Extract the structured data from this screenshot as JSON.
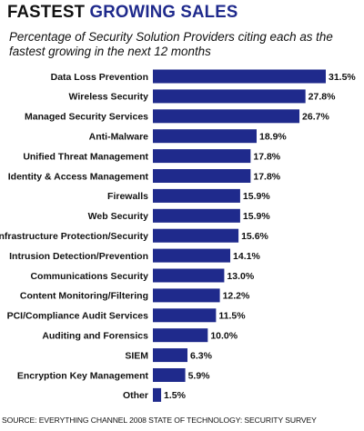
{
  "header": {
    "title_part1": "FASTEST",
    "title_part2": "GROWING SALES",
    "subtitle": "Percentage of Security Solution Providers citing each as the fastest growing in the next 12 months"
  },
  "footer": {
    "source": "SOURCE: EVERYTHING CHANNEL 2008 STATE OF TECHNOLOGY: SECURITY SURVEY"
  },
  "colors": {
    "bar": "#1f2a8c",
    "title_accent": "#1f2a8c"
  },
  "chart_data": {
    "type": "bar",
    "orientation": "horizontal",
    "title": "FASTEST GROWING SALES",
    "subtitle": "Percentage of Security Solution Providers citing each as the fastest growing in the next 12 months",
    "categories": [
      "Data Loss Prevention",
      "Wireless Security",
      "Managed Security Services",
      "Anti-Malware",
      "Unified Threat Management",
      "Identity & Access Management",
      "Firewalls",
      "Web Security",
      "Infrastructure Protection/Security",
      "Intrusion Detection/Prevention",
      "Communications Security",
      "Content Monitoring/Filtering",
      "PCI/Compliance Audit Services",
      "Auditing and Forensics",
      "SIEM",
      "Encryption Key Management",
      "Other"
    ],
    "values": [
      31.5,
      27.8,
      26.7,
      18.9,
      17.8,
      17.8,
      15.9,
      15.9,
      15.6,
      14.1,
      13.0,
      12.2,
      11.5,
      10.0,
      6.3,
      5.9,
      1.5
    ],
    "value_labels": [
      "31.5%",
      "27.8%",
      "26.7%",
      "18.9%",
      "17.8%",
      "17.8%",
      "15.9%",
      "15.9%",
      "15.6%",
      "14.1%",
      "13.0%",
      "12.2%",
      "11.5%",
      "10.0%",
      "6.3%",
      "5.9%",
      "1.5%"
    ],
    "unit": "%",
    "xlim": [
      0,
      31.5
    ],
    "grid": false,
    "legend": "none"
  }
}
